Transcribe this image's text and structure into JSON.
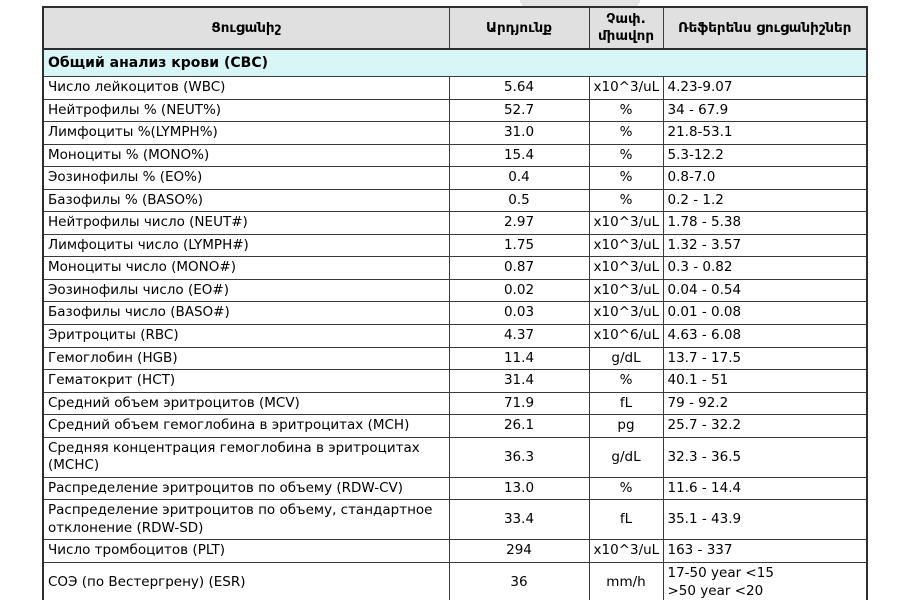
{
  "colors": {
    "header_bg": "#e0e0e0",
    "section_bg": "#d9f6f6",
    "border": "#2e2e2e",
    "text": "#000000"
  },
  "table": {
    "headers": {
      "name": "Ցուցանիշ",
      "result": "Արդյունք",
      "unit": "Չափ.\nմիավոր",
      "reference": "Ռեֆերենս ցուցանիշներ"
    },
    "section_title": "Общий анализ крови (CBC)",
    "rows": [
      {
        "name": "Число лейкоцитов (WBC)",
        "result": "5.64",
        "unit": "x10^3/uL",
        "reference": "4.23-9.07"
      },
      {
        "name": "Нейтрофилы % (NEUT%)",
        "result": "52.7",
        "unit": "%",
        "reference": "34 - 67.9"
      },
      {
        "name": "Лимфоциты %(LYMPH%)",
        "result": "31.0",
        "unit": "%",
        "reference": "21.8-53.1"
      },
      {
        "name": "Моноциты % (MONO%)",
        "result": "15.4",
        "unit": "%",
        "reference": "5.3-12.2"
      },
      {
        "name": "Эозинофилы % (EO%)",
        "result": "0.4",
        "unit": "%",
        "reference": "0.8-7.0"
      },
      {
        "name": "Базофилы % (BASO%)",
        "result": "0.5",
        "unit": "%",
        "reference": "0.2 - 1.2"
      },
      {
        "name": "Нейтрофилы число  (NEUT#)",
        "result": "2.97",
        "unit": "x10^3/uL",
        "reference": "1.78 - 5.38"
      },
      {
        "name": "Лимфоциты число (LYMPH#)",
        "result": "1.75",
        "unit": "x10^3/uL",
        "reference": "1.32 - 3.57"
      },
      {
        "name": "Моноциты число  (MONO#)",
        "result": "0.87",
        "unit": "x10^3/uL",
        "reference": "0.3 - 0.82"
      },
      {
        "name": "Эозинофилы число (EO#)",
        "result": "0.02",
        "unit": "x10^3/uL",
        "reference": "0.04 - 0.54"
      },
      {
        "name": "Базофилы число (BASO#)",
        "result": "0.03",
        "unit": "x10^3/uL",
        "reference": "0.01 - 0.08"
      },
      {
        "name": "Эритроциты  (RBC)",
        "result": "4.37",
        "unit": "x10^6/uL",
        "reference": "4.63 - 6.08"
      },
      {
        "name": "Гемоглобин (HGB)",
        "result": "11.4",
        "unit": "g/dL",
        "reference": "13.7 - 17.5"
      },
      {
        "name": "Гематокрит (HCT)",
        "result": "31.4",
        "unit": "%",
        "reference": "40.1 - 51"
      },
      {
        "name": "Средний объем эритроцитов (MCV)",
        "result": "71.9",
        "unit": "fL",
        "reference": "79 - 92.2"
      },
      {
        "name": "Средний объем гемоглобина в эритроцитах (MCH)",
        "result": "26.1",
        "unit": "pg",
        "reference": "25.7 - 32.2"
      },
      {
        "name": "Средняя концентрация гемоглобина в эритроцитах (MCHC)",
        "result": "36.3",
        "unit": "g/dL",
        "reference": "32.3 - 36.5"
      },
      {
        "name": "Распределение эритроцитов по объему (RDW-CV)",
        "result": "13.0",
        "unit": "%",
        "reference": "11.6 - 14.4"
      },
      {
        "name": "Распределение эритроцитов по объему, стандартное отклонение (RDW-SD)",
        "result": "33.4",
        "unit": "fL",
        "reference": "35.1 - 43.9"
      },
      {
        "name": "Число тромбоцитов (PLT)",
        "result": "294",
        "unit": "x10^3/uL",
        "reference": "163 - 337"
      },
      {
        "name": "СОЭ (по Вестергрену) (ESR)",
        "result": "36",
        "unit": "mm/h",
        "reference": "17-50 year <15\n>50 year <20"
      }
    ]
  }
}
